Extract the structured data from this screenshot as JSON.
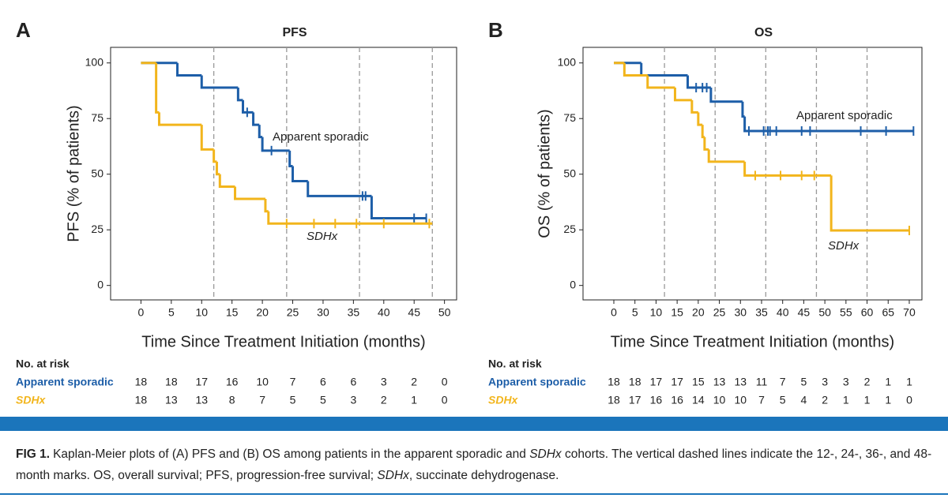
{
  "chart_data": [
    {
      "type": "kaplan-meier",
      "panel": "A",
      "title": "PFS",
      "ylabel": "PFS (% of patients)",
      "xlabel": "Time Since Treatment Initiation (months)",
      "xlim": [
        -5,
        52
      ],
      "ylim": [
        -6.5,
        107
      ],
      "xticks": [
        0,
        5,
        10,
        15,
        20,
        25,
        30,
        35,
        40,
        45,
        50
      ],
      "yticks": [
        0,
        25,
        50,
        75,
        100
      ],
      "reference_lines": [
        12,
        24,
        36,
        48
      ],
      "series": [
        {
          "name": "Apparent sporadic",
          "color": "#1d5ea8",
          "x": [
            0,
            6,
            10,
            16,
            16.8,
            18.5,
            19.5,
            20,
            24.5,
            25,
            27.5,
            38,
            47
          ],
          "values": [
            100,
            94.4,
            88.9,
            83.3,
            77.8,
            72.2,
            66.7,
            60.6,
            53.6,
            46.9,
            40.2,
            30.2,
            30.2
          ],
          "censored_x": [
            17.5,
            21.5,
            36.5,
            37,
            45,
            47
          ],
          "censored_values": [
            77.8,
            60.6,
            40.2,
            40.2,
            30.2,
            30.2
          ]
        },
        {
          "name": "SDHx",
          "color": "#f2b51c",
          "x": [
            0,
            2.5,
            3,
            10,
            12,
            12.5,
            13,
            15.5,
            20.5,
            21,
            48
          ],
          "values": [
            100,
            77.8,
            72.2,
            61.1,
            55.6,
            50,
            44.4,
            38.9,
            33.3,
            27.8,
            27.8
          ],
          "censored_x": [
            24,
            28.5,
            32,
            35.5,
            40,
            47.5
          ],
          "censored_values": [
            27.8,
            27.8,
            27.8,
            27.8,
            27.8,
            27.8
          ]
        }
      ],
      "annotations": [
        "Apparent sporadic",
        "SDHx"
      ],
      "risk_table": {
        "title": "No. at risk",
        "rows": [
          [
            18,
            18,
            17,
            16,
            10,
            7,
            6,
            6,
            3,
            2,
            0
          ],
          [
            18,
            13,
            13,
            8,
            7,
            5,
            5,
            3,
            2,
            1,
            0
          ]
        ]
      }
    },
    {
      "type": "kaplan-meier",
      "panel": "B",
      "title": "OS",
      "ylabel": "OS (% of patients)",
      "xlabel": "Time Since Treatment Initiation (months)",
      "xlim": [
        -7.3,
        73
      ],
      "ylim": [
        -6.5,
        107
      ],
      "xticks": [
        0,
        5,
        10,
        15,
        20,
        25,
        30,
        35,
        40,
        45,
        50,
        55,
        60,
        65,
        70
      ],
      "yticks": [
        0,
        25,
        50,
        75,
        100
      ],
      "reference_lines": [
        12,
        24,
        36,
        48,
        60
      ],
      "series": [
        {
          "name": "Apparent sporadic",
          "color": "#1d5ea8",
          "x": [
            0,
            6.5,
            17.5,
            23,
            30.5,
            31,
            71
          ],
          "values": [
            100,
            94.4,
            88.9,
            82.6,
            75.9,
            69.4,
            69.4
          ],
          "censored_x": [
            19.5,
            21,
            22,
            32,
            35.5,
            36.5,
            37,
            38.5,
            44.5,
            46.5,
            58.5,
            64.5,
            71
          ],
          "censored_values": [
            88.9,
            88.9,
            88.9,
            69.4,
            69.4,
            69.4,
            69.4,
            69.4,
            69.4,
            69.4,
            69.4,
            69.4,
            69.4
          ]
        },
        {
          "name": "SDHx",
          "color": "#f2b51c",
          "x": [
            0,
            2.5,
            8,
            14.5,
            18.5,
            20,
            21,
            21.5,
            22.5,
            31,
            51.5,
            70
          ],
          "values": [
            100,
            94.4,
            88.9,
            83.3,
            77.8,
            72.2,
            66.7,
            61.1,
            55.6,
            49.4,
            24.7,
            24.7
          ],
          "censored_x": [
            33.5,
            39.5,
            44.5,
            47.5,
            70
          ],
          "censored_values": [
            49.4,
            49.4,
            49.4,
            49.4,
            24.7
          ]
        }
      ],
      "annotations": [
        "Apparent sporadic",
        "SDHx"
      ],
      "risk_table": {
        "title": "No. at risk",
        "rows": [
          [
            18,
            18,
            17,
            17,
            15,
            13,
            13,
            11,
            7,
            5,
            3,
            3,
            2,
            1,
            1
          ],
          [
            18,
            17,
            16,
            16,
            14,
            10,
            10,
            7,
            5,
            4,
            2,
            1,
            1,
            1,
            0
          ]
        ]
      }
    }
  ],
  "caption": {
    "label": "FIG 1.",
    "segments": [
      {
        "text": "Kaplan-Meier plots of (A) PFS and (B) OS among patients in the apparent sporadic and ",
        "italic": false
      },
      {
        "text": "SDHx",
        "italic": true
      },
      {
        "text": " cohorts. The vertical dashed lines indicate the 12-, 24-, 36-, and 48-month marks. OS, overall survival; PFS, progression-free survival; ",
        "italic": false
      },
      {
        "text": "SDHx",
        "italic": true
      },
      {
        "text": ", succinate dehydrogenase.",
        "italic": false
      }
    ]
  }
}
